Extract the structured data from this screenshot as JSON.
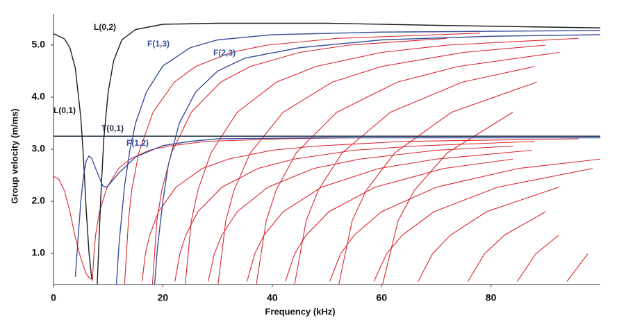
{
  "chart_data": {
    "type": "line",
    "xlabel": "Frequency (kHz)",
    "ylabel": "Group velocity (m/ms)",
    "xlim": [
      0,
      100
    ],
    "ylim": [
      0.4,
      5.6
    ],
    "xticks": [
      0,
      20,
      40,
      60,
      80
    ],
    "yticks": [
      {
        "value": 1,
        "label": "1.0"
      },
      {
        "value": 2,
        "label": "2.0"
      },
      {
        "value": 3,
        "label": "3.0"
      },
      {
        "value": 4,
        "label": "4.0"
      },
      {
        "value": 5,
        "label": "5.0"
      }
    ],
    "grid": false,
    "series": [
      {
        "name": "L(0,1)",
        "color": "#1b1b1b",
        "x": [
          0,
          2,
          3,
          4,
          5,
          5.5,
          6,
          6.5,
          7
        ],
        "values": [
          5.22,
          5.12,
          4.95,
          4.55,
          3.6,
          2.8,
          1.8,
          1.0,
          0.5
        ]
      },
      {
        "name": "L(0,2)",
        "color": "#1b1b1b",
        "x": [
          8,
          8.3,
          8.7,
          9.2,
          10,
          11,
          12.5,
          15,
          20,
          30,
          50,
          70,
          100
        ],
        "values": [
          0.4,
          1.2,
          2.2,
          3.2,
          4.1,
          4.7,
          5.1,
          5.3,
          5.4,
          5.42,
          5.42,
          5.38,
          5.33
        ]
      },
      {
        "name": "T(0,1)",
        "color": "#1a2e40",
        "x": [
          0,
          100
        ],
        "values": [
          3.25,
          3.25
        ]
      },
      {
        "name": "F(1,2)",
        "color": "#3a4f9c",
        "x": [
          4,
          4.5,
          5,
          5.5,
          6,
          6.5,
          7,
          8,
          9,
          9.5,
          10,
          12,
          15,
          20,
          25,
          30,
          50,
          100
        ],
        "values": [
          0.55,
          1.3,
          2.0,
          2.5,
          2.78,
          2.87,
          2.82,
          2.55,
          2.3,
          2.27,
          2.3,
          2.55,
          2.85,
          3.07,
          3.15,
          3.2,
          3.22,
          3.22
        ]
      },
      {
        "name": "F(1,3)",
        "color": "#3a4f9c",
        "x": [
          11.5,
          12,
          13,
          14,
          15,
          17,
          20,
          25,
          30,
          40,
          60,
          100
        ],
        "values": [
          0.4,
          1.2,
          2.3,
          3.0,
          3.5,
          4.1,
          4.6,
          4.95,
          5.1,
          5.2,
          5.25,
          5.28
        ]
      },
      {
        "name": "F(2,3)",
        "color": "#3a4f9c",
        "x": [
          18.5,
          19,
          20,
          21,
          23,
          26,
          30,
          35,
          45,
          60,
          80,
          100
        ],
        "values": [
          0.4,
          1.1,
          2.0,
          2.7,
          3.5,
          4.1,
          4.5,
          4.75,
          4.95,
          5.1,
          5.17,
          5.2
        ]
      },
      {
        "color": "#d9252b",
        "x": [
          0,
          1,
          2,
          3,
          4,
          5,
          6,
          6.8
        ],
        "values": [
          2.48,
          2.42,
          2.2,
          1.8,
          1.3,
          0.9,
          0.6,
          0.5
        ]
      },
      {
        "color": "#d9252b",
        "x": [
          7.1,
          7.4,
          7.7,
          8.4,
          9.8,
          11.9,
          14,
          17.5,
          21,
          28,
          42,
          56
        ],
        "values": [
          0.46,
          0.99,
          1.35,
          1.8,
          2.27,
          2.63,
          2.81,
          2.98,
          3.06,
          3.15,
          3.2,
          3.22
        ]
      },
      {
        "color": "#d9252b",
        "x": [
          13,
          13.7,
          14.3,
          15.6,
          18.2,
          22.1,
          26,
          32.5,
          39,
          52,
          78
        ],
        "values": [
          0.41,
          1.62,
          2.21,
          2.93,
          3.71,
          4.29,
          4.59,
          4.86,
          5.0,
          5.13,
          5.23
        ]
      },
      {
        "color": "#d9252b",
        "x": [
          18.1,
          18.9,
          19.8,
          21.6,
          25.2,
          30.6,
          36,
          45,
          54,
          72
        ],
        "values": [
          0.41,
          1.62,
          2.21,
          2.93,
          3.71,
          4.29,
          4.59,
          4.86,
          5.0,
          5.13
        ]
      },
      {
        "color": "#d9252b",
        "x": [
          24.1,
          25.2,
          26.4,
          28.8,
          33.6,
          40.8,
          48,
          60,
          72,
          96
        ],
        "values": [
          0.41,
          1.62,
          2.21,
          2.93,
          3.71,
          4.29,
          4.59,
          4.86,
          5.0,
          5.13
        ]
      },
      {
        "color": "#d9252b",
        "x": [
          30.1,
          31.5,
          33,
          36,
          42,
          51,
          60,
          75,
          90
        ],
        "values": [
          0.41,
          1.62,
          2.21,
          2.93,
          3.71,
          4.29,
          4.59,
          4.86,
          5.0
        ]
      },
      {
        "color": "#d9252b",
        "x": [
          37.1,
          38.9,
          40.7,
          44.4,
          51.8,
          62.9,
          74,
          92.5
        ],
        "values": [
          0.41,
          1.62,
          2.21,
          2.93,
          3.71,
          4.29,
          4.59,
          4.86
        ]
      },
      {
        "color": "#d9252b",
        "x": [
          44.1,
          46.2,
          48.4,
          52.8,
          61.6,
          74.8,
          88
        ],
        "values": [
          0.41,
          1.62,
          2.21,
          2.93,
          3.71,
          4.29,
          4.59
        ]
      },
      {
        "color": "#d9252b",
        "x": [
          52.2,
          54.6,
          57.2,
          62.4,
          72.8,
          88.4
        ],
        "values": [
          0.41,
          1.62,
          2.21,
          2.93,
          3.71,
          4.29
        ]
      },
      {
        "color": "#d9252b",
        "x": [
          60.2,
          63,
          66,
          72,
          84
        ],
        "values": [
          0.41,
          1.62,
          2.21,
          2.93,
          3.71
        ]
      },
      {
        "color": "#d9252b",
        "x": [
          16.2,
          16.8,
          17.6,
          19.2,
          22.4,
          27.2,
          32,
          40,
          48,
          64,
          96
        ],
        "values": [
          0.46,
          0.99,
          1.35,
          1.8,
          2.27,
          2.63,
          2.81,
          2.98,
          3.06,
          3.15,
          3.2
        ]
      },
      {
        "color": "#d9252b",
        "x": [
          22.2,
          23.1,
          24.2,
          26.4,
          30.8,
          37.4,
          44,
          55,
          66,
          88
        ],
        "values": [
          0.46,
          0.99,
          1.35,
          1.8,
          2.27,
          2.63,
          2.81,
          2.98,
          3.06,
          3.15
        ]
      },
      {
        "color": "#d9252b",
        "x": [
          28.3,
          29.4,
          30.8,
          33.6,
          39.2,
          47.6,
          56,
          70,
          84
        ],
        "values": [
          0.46,
          0.99,
          1.35,
          1.8,
          2.27,
          2.63,
          2.81,
          2.98,
          3.06
        ]
      },
      {
        "color": "#d9252b",
        "x": [
          35.4,
          36.8,
          38.5,
          42,
          49,
          59.5,
          70,
          87.5
        ],
        "values": [
          0.46,
          0.99,
          1.35,
          1.8,
          2.27,
          2.63,
          2.81,
          2.98
        ]
      },
      {
        "color": "#d9252b",
        "x": [
          42.4,
          44.1,
          46.2,
          50.4,
          58.8,
          71.4,
          84
        ],
        "values": [
          0.46,
          0.99,
          1.35,
          1.8,
          2.27,
          2.63,
          2.81
        ]
      },
      {
        "color": "#d9252b",
        "x": [
          50.5,
          52.5,
          55,
          60,
          70,
          85,
          100
        ],
        "values": [
          0.46,
          0.99,
          1.35,
          1.8,
          2.27,
          2.63,
          2.81
        ]
      },
      {
        "color": "#d9252b",
        "x": [
          58.6,
          60.9,
          63.8,
          69.6,
          81.2,
          98.6
        ],
        "values": [
          0.46,
          0.99,
          1.35,
          1.8,
          2.27,
          2.63
        ]
      },
      {
        "color": "#d9252b",
        "x": [
          66.7,
          69.3,
          72.6,
          79.2,
          92.4
        ],
        "values": [
          0.46,
          0.99,
          1.35,
          1.8,
          2.27
        ]
      },
      {
        "color": "#d9252b",
        "x": [
          75.8,
          78.8,
          82.5,
          90
        ],
        "values": [
          0.46,
          0.99,
          1.35,
          1.8
        ]
      },
      {
        "color": "#d9252b",
        "x": [
          84.8,
          88.2,
          92.4
        ],
        "values": [
          0.46,
          0.99,
          1.35
        ]
      },
      {
        "color": "#d9252b",
        "x": [
          93.9,
          97.7
        ],
        "values": [
          0.46,
          0.99
        ]
      }
    ]
  }
}
